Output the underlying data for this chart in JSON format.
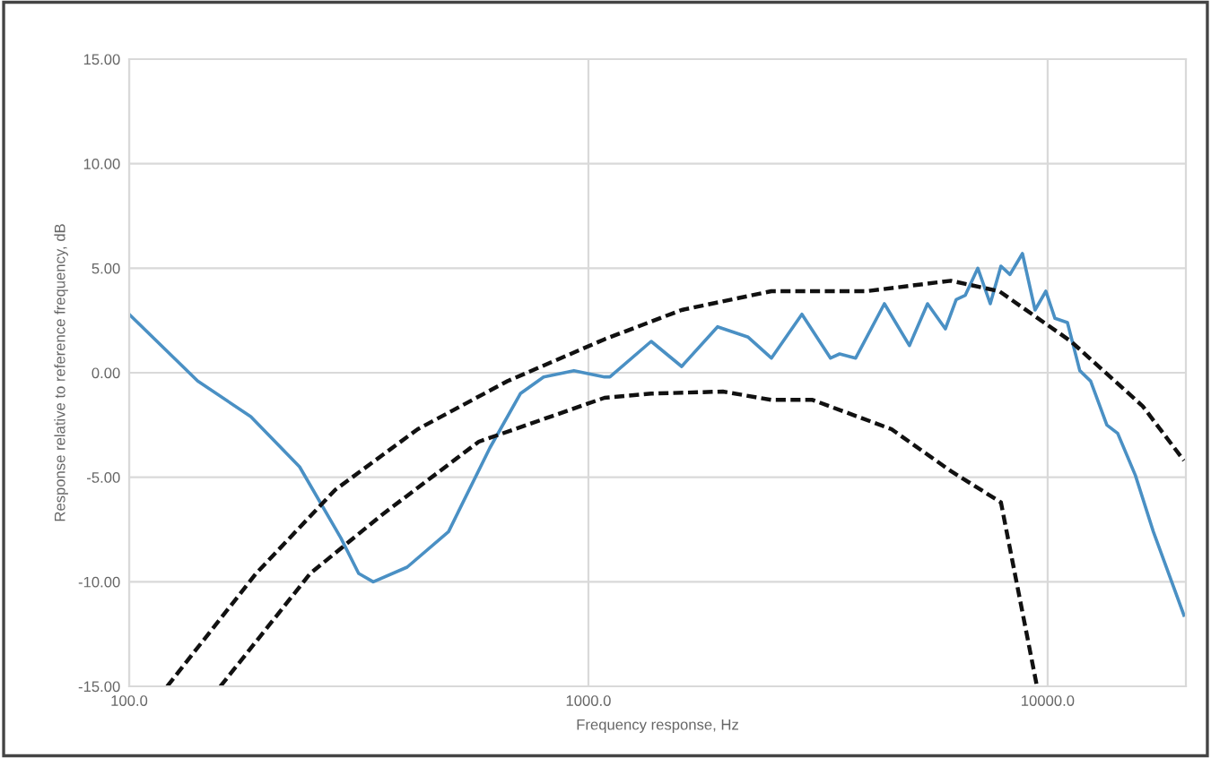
{
  "chart_data": {
    "type": "line",
    "xlabel": "Frequency response, Hz",
    "ylabel": "Response relative to reference frequency, dB",
    "log": "x",
    "xlim": [
      100,
      20000
    ],
    "xticks": [
      {
        "value": 100,
        "label": "100.0"
      },
      {
        "value": 1000,
        "label": "1000.0"
      },
      {
        "value": 10000,
        "label": "10000.0"
      }
    ],
    "ylim": [
      -15,
      15
    ],
    "yticks": [
      {
        "value": 15,
        "label": "15.00"
      },
      {
        "value": 10,
        "label": "10.00"
      },
      {
        "value": 5,
        "label": "5.00"
      },
      {
        "value": 0,
        "label": "0.00"
      },
      {
        "value": -5,
        "label": "-5.00"
      },
      {
        "value": -10,
        "label": "-10.00"
      },
      {
        "value": -15,
        "label": "-15.00"
      }
    ],
    "grid": true,
    "marker": "none",
    "series": [
      {
        "color": "#4a90c4",
        "line_style": "solid",
        "x": [
          100,
          141,
          184,
          235,
          289,
          316,
          340,
          403,
          496,
          610,
          711,
          799,
          930,
          1084,
          1114,
          1370,
          1596,
          1911,
          2228,
          2503,
          2917,
          3367,
          3524,
          3819,
          4411,
          5000,
          5476,
          5988,
          6322,
          6614,
          7047,
          7500,
          7912,
          8279,
          8813,
          9388,
          9911,
          10374,
          11044,
          11749,
          12407,
          13457,
          14207,
          15522,
          16989,
          19805
        ],
        "values": [
          2.8,
          -0.4,
          -2.1,
          -4.5,
          -7.9,
          -9.6,
          -10.0,
          -9.3,
          -7.6,
          -3.6,
          -1.0,
          -0.2,
          0.1,
          -0.2,
          -0.2,
          1.5,
          0.3,
          2.2,
          1.7,
          0.7,
          2.8,
          0.7,
          0.9,
          0.7,
          3.3,
          1.3,
          3.3,
          2.1,
          3.5,
          3.7,
          5.0,
          3.3,
          5.1,
          4.7,
          5.7,
          3.0,
          3.9,
          2.6,
          2.4,
          0.1,
          -0.4,
          -2.5,
          -2.9,
          -4.9,
          -7.6,
          -11.6
        ]
      },
      {
        "color": "#111111",
        "line_style": "dashed",
        "x": [
          121,
          189,
          281,
          425,
          667,
          1084,
          1596,
          2503,
          4030,
          6152,
          7846,
          11240,
          16106,
          19805
        ],
        "values": [
          -15,
          -9.6,
          -5.6,
          -2.7,
          -0.4,
          1.6,
          3.0,
          3.9,
          3.9,
          4.4,
          3.9,
          1.5,
          -1.6,
          -4.2
        ]
      },
      {
        "color": "#111111",
        "line_style": "dashed",
        "x": [
          158,
          248,
          355,
          577,
          1084,
          1370,
          1963,
          2503,
          3076,
          4571,
          6152,
          7912,
          9478
        ],
        "values": [
          -15,
          -9.6,
          -6.8,
          -3.3,
          -1.2,
          -1.0,
          -0.9,
          -1.3,
          -1.3,
          -2.7,
          -4.7,
          -6.2,
          -15
        ]
      }
    ]
  }
}
